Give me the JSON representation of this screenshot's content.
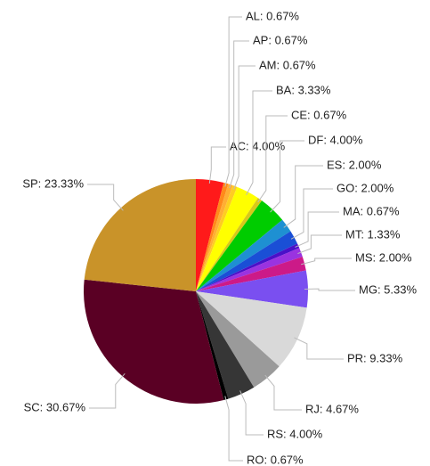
{
  "chart_data": {
    "type": "pie",
    "value_labels": [
      "AC: 4.00%",
      "AL: 0.67%",
      "AP: 0.67%",
      "AM: 0.67%",
      "BA: 3.33%",
      "CE: 0.67%",
      "DF: 4.00%",
      "ES: 2.00%",
      "GO: 2.00%",
      "MA: 0.67%",
      "MT: 1.33%",
      "MS: 2.00%",
      "MG: 5.33%",
      "PR: 9.33%",
      "RJ: 4.67%",
      "RS: 4.00%",
      "RO: 0.67%",
      "SC: 30.67%",
      "SP: 23.33%"
    ],
    "values": [
      4.0,
      0.67,
      0.67,
      0.67,
      3.33,
      0.67,
      4.0,
      2.0,
      2.0,
      0.67,
      1.33,
      2.0,
      5.33,
      9.33,
      4.67,
      4.0,
      0.67,
      30.67,
      23.33
    ],
    "colors": [
      "#ff1a1a",
      "#ff8a1a",
      "#ffae33",
      "#ffcc22",
      "#ffff00",
      "#d8c81a",
      "#00cc00",
      "#1e90d2",
      "#1a4fd6",
      "#4a10c8",
      "#9a33e0",
      "#cc1a88",
      "#7a4ff0",
      "#d9d9d9",
      "#9a9a9a",
      "#363636",
      "#000000",
      "#5a0024",
      "#c99329"
    ]
  }
}
